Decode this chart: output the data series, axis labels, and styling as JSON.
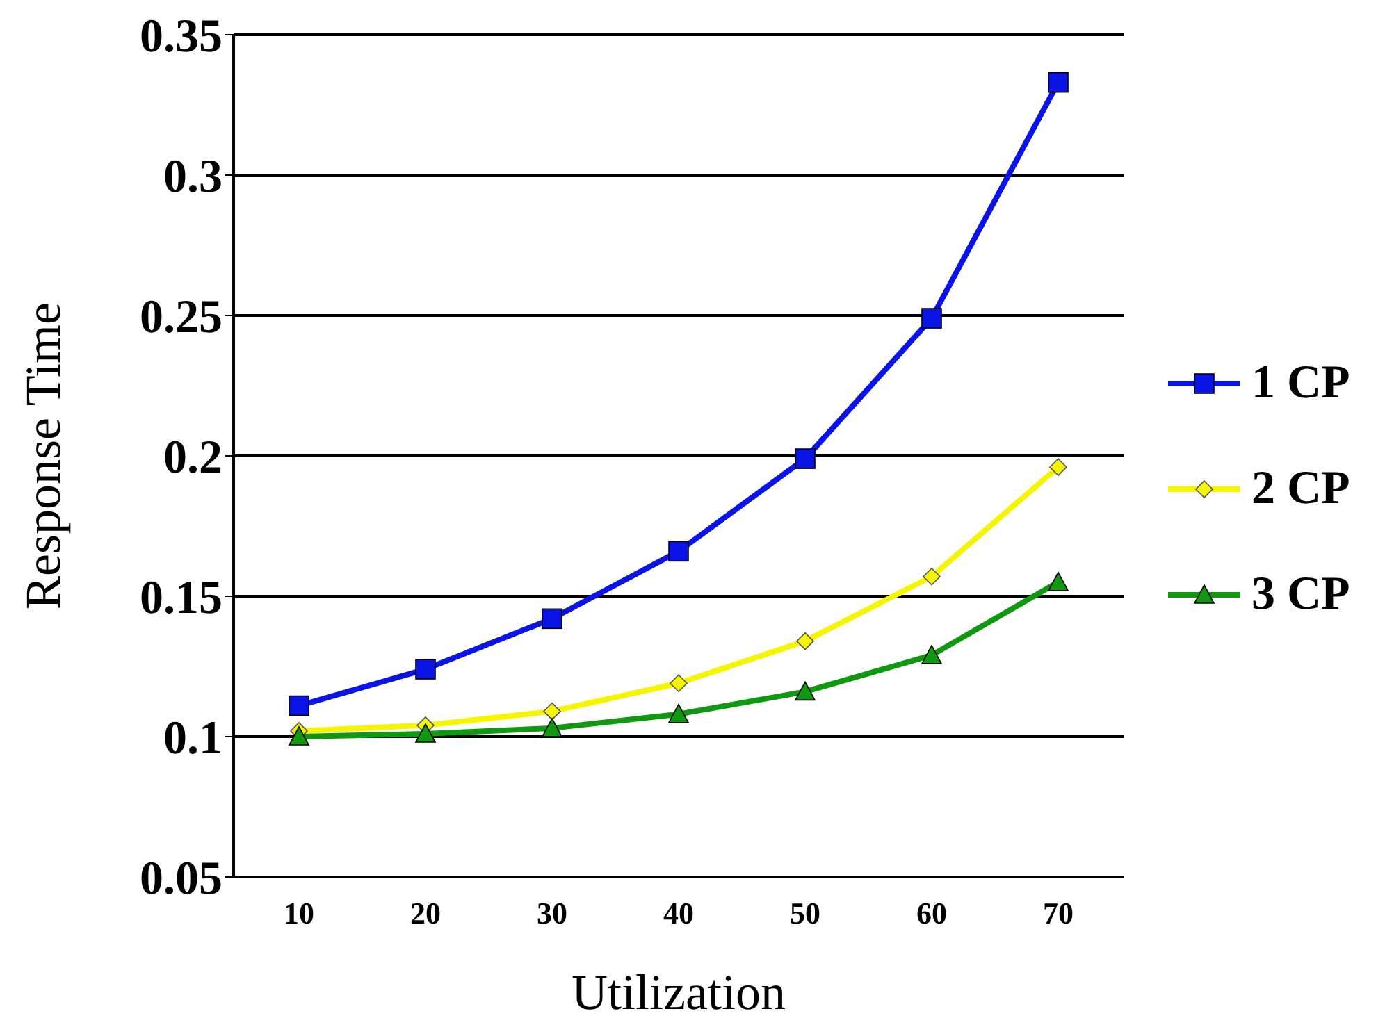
{
  "chart_data": {
    "type": "line",
    "xlabel": "Utilization",
    "ylabel": "Response Time",
    "categories": [
      "10",
      "20",
      "30",
      "40",
      "50",
      "60",
      "70"
    ],
    "series": [
      {
        "name": "1 CP",
        "color": "#0a14e6",
        "marker": "square",
        "values": [
          0.111,
          0.124,
          0.142,
          0.166,
          0.199,
          0.249,
          0.333
        ]
      },
      {
        "name": "2 CP",
        "color": "#f5f500",
        "marker": "diamond",
        "values": [
          0.102,
          0.104,
          0.109,
          0.119,
          0.134,
          0.157,
          0.196
        ]
      },
      {
        "name": "3 CP",
        "color": "#109810",
        "marker": "triangle",
        "values": [
          0.1,
          0.101,
          0.103,
          0.108,
          0.116,
          0.129,
          0.155
        ]
      }
    ],
    "ylim": [
      0.05,
      0.35
    ],
    "yticks": [
      0.05,
      0.1,
      0.15,
      0.2,
      0.25,
      0.3,
      0.35
    ],
    "grid": "y",
    "legend": "right"
  }
}
